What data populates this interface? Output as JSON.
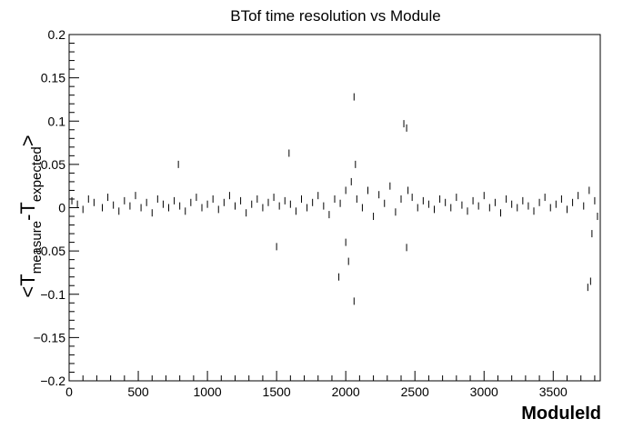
{
  "chart_data": {
    "type": "scatter",
    "title": "BTof time resolution vs Module",
    "xlabel": "ModuleId",
    "ylabel_parts": [
      "<T",
      "measure",
      "-T",
      "expected",
      ">"
    ],
    "xlim": [
      0,
      3840
    ],
    "ylim": [
      -0.2,
      0.2
    ],
    "xticks": [
      0,
      500,
      1000,
      1500,
      2000,
      2500,
      3000,
      3500
    ],
    "xtick_labels": [
      "0",
      "500",
      "1000",
      "1500",
      "2000",
      "2500",
      "3000",
      "3500"
    ],
    "yticks": [
      -0.2,
      -0.15,
      -0.1,
      -0.05,
      0,
      0.05,
      0.1,
      0.15,
      0.2
    ],
    "ytick_labels": [
      "−0.2",
      "−0.15",
      "−0.1",
      "−0.05",
      "0",
      "0.05",
      "0.1",
      "0.15",
      "0.2"
    ],
    "grid": false,
    "marker": "vertical-dash",
    "color": "#000000",
    "x": [
      20,
      60,
      100,
      140,
      180,
      240,
      280,
      320,
      360,
      400,
      440,
      480,
      520,
      560,
      600,
      640,
      680,
      720,
      760,
      790,
      800,
      840,
      880,
      920,
      960,
      1000,
      1040,
      1080,
      1120,
      1160,
      1200,
      1240,
      1280,
      1320,
      1360,
      1400,
      1440,
      1480,
      1500,
      1520,
      1560,
      1590,
      1600,
      1640,
      1680,
      1720,
      1760,
      1800,
      1840,
      1880,
      1920,
      1950,
      1960,
      2000,
      2000,
      2020,
      2040,
      2060,
      2060,
      2070,
      2080,
      2120,
      2160,
      2200,
      2240,
      2280,
      2320,
      2360,
      2400,
      2420,
      2440,
      2440,
      2450,
      2480,
      2520,
      2560,
      2600,
      2640,
      2680,
      2720,
      2760,
      2800,
      2840,
      2880,
      2920,
      2960,
      3000,
      3040,
      3080,
      3120,
      3160,
      3200,
      3240,
      3280,
      3320,
      3360,
      3400,
      3440,
      3480,
      3520,
      3560,
      3600,
      3640,
      3680,
      3720,
      3750,
      3760,
      3770,
      3780,
      3800,
      3820
    ],
    "y": [
      0.008,
      0.004,
      -0.002,
      0.01,
      0.006,
      0.0,
      0.012,
      0.003,
      -0.004,
      0.008,
      0.002,
      0.014,
      0.0,
      0.006,
      -0.006,
      0.01,
      0.004,
      0.0,
      0.008,
      0.05,
      0.002,
      -0.004,
      0.006,
      0.012,
      0.0,
      0.004,
      0.01,
      -0.002,
      0.006,
      0.014,
      0.002,
      0.008,
      -0.006,
      0.004,
      0.01,
      0.0,
      0.006,
      0.012,
      -0.045,
      0.002,
      0.008,
      0.063,
      0.004,
      -0.004,
      0.01,
      0.0,
      0.006,
      0.014,
      0.002,
      -0.008,
      0.01,
      -0.08,
      0.005,
      0.02,
      -0.04,
      -0.062,
      0.03,
      -0.108,
      0.128,
      0.05,
      0.01,
      0.0,
      0.02,
      -0.01,
      0.015,
      0.005,
      0.025,
      -0.005,
      0.01,
      0.097,
      0.092,
      -0.046,
      0.02,
      0.012,
      0.0,
      0.008,
      0.004,
      -0.002,
      0.01,
      0.006,
      0.0,
      0.012,
      0.003,
      -0.004,
      0.008,
      0.002,
      0.014,
      0.0,
      0.006,
      -0.006,
      0.01,
      0.004,
      0.0,
      0.008,
      0.002,
      -0.004,
      0.006,
      0.012,
      0.0,
      0.004,
      0.01,
      -0.002,
      0.006,
      0.014,
      0.002,
      -0.092,
      0.02,
      -0.085,
      -0.03,
      0.008,
      -0.01
    ]
  }
}
